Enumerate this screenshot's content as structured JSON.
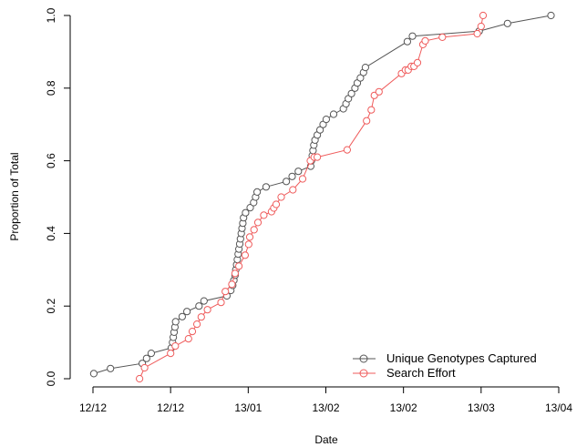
{
  "chart_data": {
    "type": "line",
    "xlabel": "Date",
    "ylabel": "Proportion of Total",
    "xlim": [
      0,
      12
    ],
    "ylim": [
      0,
      1
    ],
    "x_ticks": [
      {
        "pos": 0,
        "label": "12/12"
      },
      {
        "pos": 2,
        "label": "12/12"
      },
      {
        "pos": 4,
        "label": "13/01"
      },
      {
        "pos": 6,
        "label": "13/02"
      },
      {
        "pos": 8,
        "label": "13/02"
      },
      {
        "pos": 10,
        "label": "13/03"
      },
      {
        "pos": 12,
        "label": "13/04"
      }
    ],
    "y_ticks": [
      0.0,
      0.2,
      0.4,
      0.6,
      0.8,
      1.0
    ],
    "y_tick_labels": [
      "0.0",
      "0.2",
      "0.4",
      "0.6",
      "0.8",
      "1.0"
    ],
    "legend_position": "bottom-right",
    "series": [
      {
        "name": "Unique Genotypes Captured",
        "color": "#555555",
        "x": [
          0.02,
          0.45,
          1.27,
          1.38,
          1.5,
          2.02,
          2.05,
          2.07,
          2.09,
          2.11,
          2.13,
          2.3,
          2.42,
          2.73,
          2.86,
          3.45,
          3.55,
          3.6,
          3.63,
          3.66,
          3.68,
          3.7,
          3.72,
          3.74,
          3.76,
          3.78,
          3.8,
          3.82,
          3.84,
          3.86,
          3.88,
          3.93,
          4.05,
          4.14,
          4.19,
          4.23,
          4.46,
          4.98,
          5.13,
          5.29,
          5.61,
          5.63,
          5.65,
          5.67,
          5.69,
          5.72,
          5.78,
          5.85,
          5.93,
          6.01,
          6.2,
          6.45,
          6.52,
          6.58,
          6.66,
          6.75,
          6.81,
          6.89,
          6.97,
          7.02,
          8.1,
          8.23,
          9.95,
          10.68,
          11.8
        ],
        "y": [
          0.014,
          0.028,
          0.042,
          0.056,
          0.07,
          0.085,
          0.1,
          0.114,
          0.128,
          0.142,
          0.157,
          0.171,
          0.185,
          0.2,
          0.214,
          0.228,
          0.243,
          0.257,
          0.271,
          0.285,
          0.3,
          0.314,
          0.328,
          0.343,
          0.357,
          0.371,
          0.385,
          0.4,
          0.414,
          0.428,
          0.443,
          0.457,
          0.471,
          0.485,
          0.5,
          0.514,
          0.528,
          0.543,
          0.557,
          0.571,
          0.585,
          0.6,
          0.614,
          0.628,
          0.643,
          0.657,
          0.671,
          0.685,
          0.7,
          0.714,
          0.728,
          0.743,
          0.757,
          0.771,
          0.785,
          0.8,
          0.814,
          0.828,
          0.843,
          0.857,
          0.928,
          0.943,
          0.957,
          0.978,
          1.0
        ]
      },
      {
        "name": "Search Effort",
        "color": "#ef5b5b",
        "x": [
          1.2,
          1.33,
          2.0,
          2.12,
          2.46,
          2.56,
          2.68,
          2.79,
          2.95,
          3.3,
          3.41,
          3.58,
          3.66,
          3.76,
          3.92,
          4.01,
          4.04,
          4.15,
          4.25,
          4.4,
          4.6,
          4.66,
          4.72,
          4.85,
          5.15,
          5.4,
          5.6,
          5.7,
          5.78,
          6.55,
          7.05,
          7.17,
          7.25,
          7.37,
          7.95,
          8.05,
          8.12,
          8.2,
          8.27,
          8.36,
          8.5,
          8.56,
          9.0,
          9.9,
          10.0,
          10.05
        ],
        "y": [
          0.0,
          0.03,
          0.07,
          0.09,
          0.11,
          0.13,
          0.15,
          0.17,
          0.19,
          0.21,
          0.24,
          0.26,
          0.29,
          0.31,
          0.34,
          0.37,
          0.39,
          0.41,
          0.43,
          0.45,
          0.46,
          0.47,
          0.48,
          0.5,
          0.52,
          0.55,
          0.6,
          0.61,
          0.61,
          0.63,
          0.71,
          0.74,
          0.78,
          0.79,
          0.84,
          0.85,
          0.85,
          0.86,
          0.86,
          0.87,
          0.92,
          0.93,
          0.94,
          0.95,
          0.97,
          1.0
        ]
      }
    ]
  }
}
